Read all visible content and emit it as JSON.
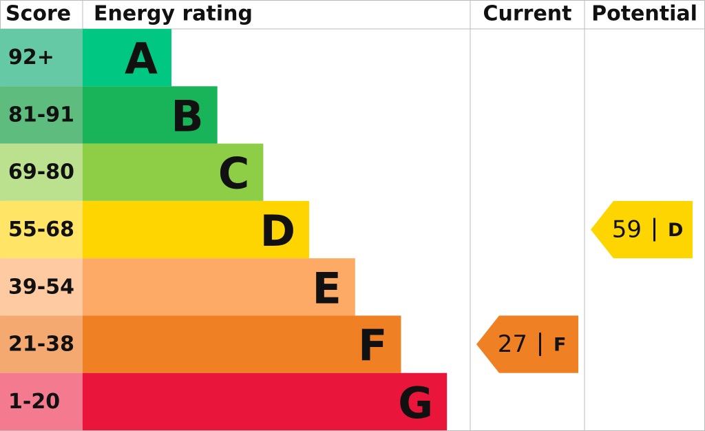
{
  "header": {
    "score": "Score",
    "rating": "Energy rating",
    "current": "Current",
    "potential": "Potential"
  },
  "bands": [
    {
      "score": "92+",
      "rating": "A",
      "color": "#00c781",
      "score_color": "#66c9a5"
    },
    {
      "score": "81-91",
      "rating": "B",
      "color": "#19b459",
      "score_color": "#5ebd7e"
    },
    {
      "score": "69-80",
      "rating": "C",
      "color": "#8dce46",
      "score_color": "#bbe08e"
    },
    {
      "score": "55-68",
      "rating": "D",
      "color": "#ffd500",
      "score_color": "#ffe466"
    },
    {
      "score": "39-54",
      "rating": "E",
      "color": "#fcaa65",
      "score_color": "#fdcaa2"
    },
    {
      "score": "21-38",
      "rating": "F",
      "color": "#ef8023",
      "score_color": "#f4a970"
    },
    {
      "score": "1-20",
      "rating": "G",
      "color": "#e9153b",
      "score_color": "#f47b8f"
    }
  ],
  "current": {
    "score": 27,
    "rating": "F"
  },
  "potential": {
    "score": 59,
    "rating": "D"
  }
}
